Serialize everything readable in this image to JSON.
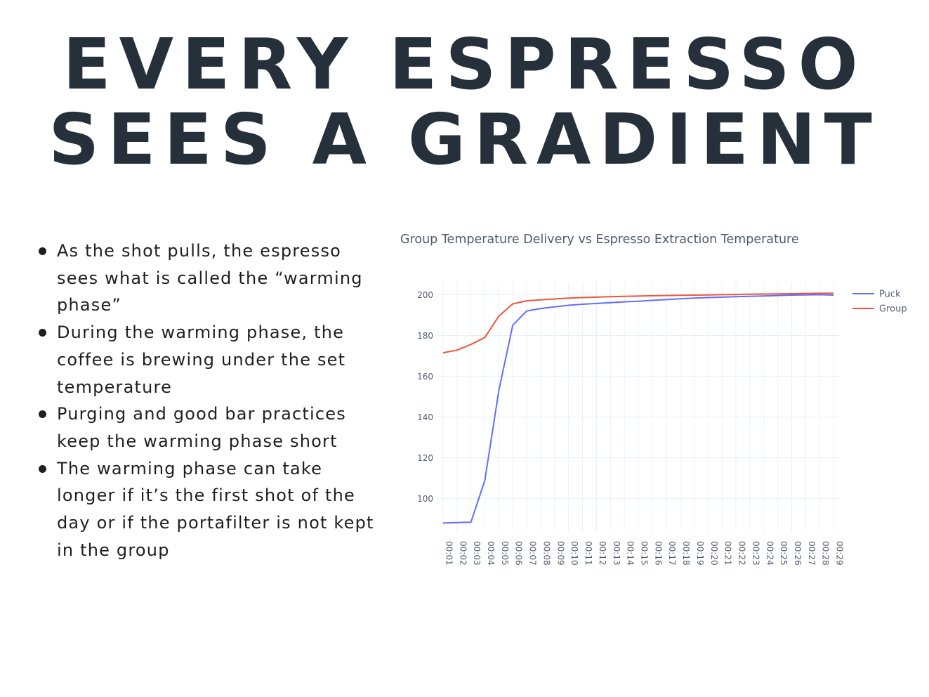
{
  "headline": {
    "line1": "EVERY ESPRESSO",
    "line2": "SEES A GRADIENT"
  },
  "bullets": [
    "As the shot pulls, the espresso sees what is called the “warming phase”",
    "During the warming phase, the coffee is brewing under the set temperature",
    "Purging and good bar practices keep the warming phase short",
    "The warming phase can take longer if it’s the first shot of the day or if the portafilter is not kept in the group"
  ],
  "chart_data": {
    "type": "line",
    "title": "Group Temperature Delivery vs Espresso Extraction Temperature",
    "xlabel": "",
    "ylabel": "",
    "x": [
      "00:01",
      "00:02",
      "00:03",
      "00:04",
      "00:05",
      "00:06",
      "00:07",
      "00:08",
      "00:09",
      "00:10",
      "00:11",
      "00:12",
      "00:13",
      "00:14",
      "00:15",
      "00:16",
      "00:17",
      "00:18",
      "00:19",
      "00:20",
      "00:21",
      "00:22",
      "00:23",
      "00:24",
      "00:25",
      "00:26",
      "00:27",
      "00:28",
      "00:29"
    ],
    "series": [
      {
        "name": "Puck",
        "color": "#636efa",
        "values": [
          88,
          88.2,
          88.4,
          109,
          153,
          185,
          192,
          193.2,
          194,
          194.8,
          195.3,
          195.7,
          196.1,
          196.5,
          196.8,
          197.2,
          197.6,
          198,
          198.3,
          198.6,
          198.8,
          199,
          199.2,
          199.4,
          199.6,
          199.8,
          199.9,
          200,
          199.8
        ]
      },
      {
        "name": "Group",
        "color": "#ef553b",
        "values": [
          171.5,
          172.8,
          175.6,
          179,
          189.5,
          195.5,
          197,
          197.5,
          197.9,
          198.3,
          198.6,
          198.8,
          199,
          199.2,
          199.3,
          199.5,
          199.6,
          199.7,
          199.8,
          199.9,
          200,
          200.1,
          200.2,
          200.3,
          200.4,
          200.5,
          200.6,
          200.7,
          200.7
        ]
      }
    ],
    "y_ticks": [
      100,
      120,
      140,
      160,
      180,
      200
    ],
    "ylim": [
      84,
      206
    ],
    "grid": true,
    "legend_position": "top-right"
  }
}
